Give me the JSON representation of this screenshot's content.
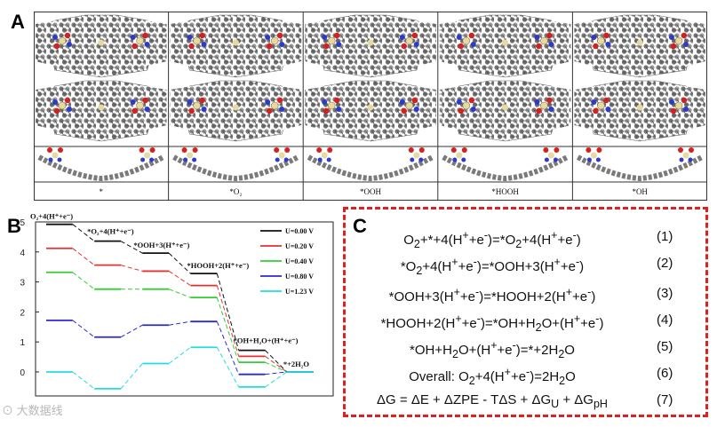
{
  "panels": {
    "a": "A",
    "b": "B",
    "c": "C"
  },
  "structure_labels": [
    "*",
    "*O₂",
    "*OOH",
    "*HOOH",
    "*OH"
  ],
  "chart_data": {
    "type": "line",
    "x": [
      0,
      1,
      2,
      3,
      4,
      5
    ],
    "ylim": [
      -0.8,
      5
    ],
    "yticks": [
      0,
      1,
      2,
      3,
      4,
      5
    ],
    "grid": false,
    "legend_position": "top-right",
    "step_labels": [
      "O₂+4(H⁺+e⁻)",
      "*O₂+4(H⁺+e⁻)",
      "*OOH+3(H⁺+e⁻)",
      "*HOOH+2(H⁺+e⁻)",
      "*OH+H₂O+(H⁺+e⁻)",
      "*+2H₂O"
    ],
    "series": [
      {
        "name": "U=0.00 V",
        "color": "#111111",
        "values": [
          4.92,
          4.36,
          3.96,
          3.28,
          0.72,
          0
        ]
      },
      {
        "name": "U=0.20 V",
        "color": "#e53030",
        "values": [
          4.12,
          3.56,
          3.36,
          2.88,
          0.52,
          0
        ]
      },
      {
        "name": "U=0.40 V",
        "color": "#33cc33",
        "values": [
          3.32,
          2.76,
          2.76,
          2.48,
          0.32,
          0
        ]
      },
      {
        "name": "U=0.80 V",
        "color": "#2a2ad0",
        "values": [
          1.72,
          1.16,
          1.56,
          1.68,
          -0.08,
          0
        ]
      },
      {
        "name": "U=1.23 V",
        "color": "#22dddd",
        "values": [
          0.0,
          -0.56,
          0.28,
          0.82,
          -0.5,
          0
        ]
      }
    ]
  },
  "equations": [
    {
      "html": "O<sub>2</sub>+*+4(H<sup>+</sup>+e<sup>-</sup>)=*O<sub>2</sub>+4(H<sup>+</sup>+e<sup>-</sup>)",
      "num": "(1)"
    },
    {
      "html": "*O<sub>2</sub>+4(H<sup>+</sup>+e<sup>-</sup>)=*OOH+3(H<sup>+</sup>+e<sup>-</sup>)",
      "num": "(2)"
    },
    {
      "html": "*OOH+3(H<sup>+</sup>+e<sup>-</sup>)=*HOOH+2(H<sup>+</sup>+e<sup>-</sup>)",
      "num": "(3)"
    },
    {
      "html": "*HOOH+2(H<sup>+</sup>+e<sup>-</sup>)=*OH+H<sub>2</sub>O+(H<sup>+</sup>+e<sup>-</sup>)",
      "num": "(4)"
    },
    {
      "html": "*OH+H<sub>2</sub>O+(H<sup>+</sup>+e<sup>-</sup>)=*+2H<sub>2</sub>O",
      "num": "(5)"
    },
    {
      "html": "Overall: O<sub>2</sub>+4(H<sup>+</sup>+e<sup>-</sup>)=2H<sub>2</sub>O",
      "num": "(6)"
    },
    {
      "html": "ΔG = ΔE + ΔZPE - TΔS + ΔG<sub>U</sub> + ΔG<sub>pH</sub>",
      "num": "(7)"
    }
  ],
  "watermark": "大数据线"
}
